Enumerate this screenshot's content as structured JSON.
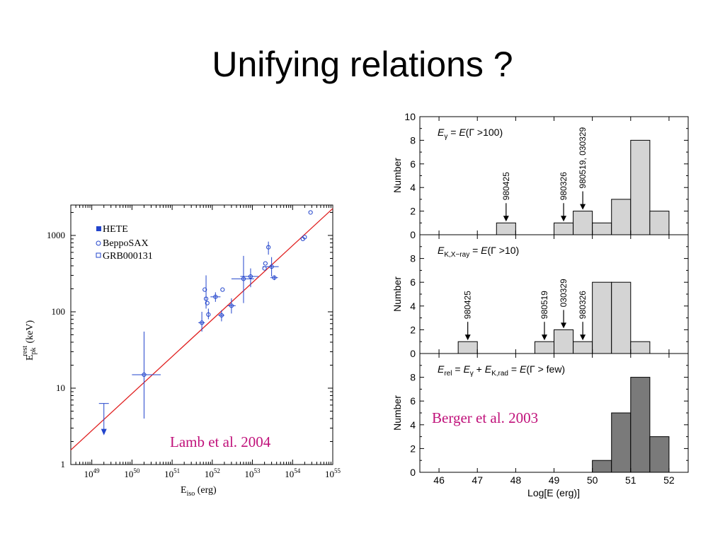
{
  "slide": {
    "title": "Unifying relations ?",
    "left_citation": "Lamb et al. 2004",
    "right_citation": "Berger et al. 2003",
    "citation_color": "#c0117a"
  },
  "chart_data": [
    {
      "type": "scatter",
      "panel": "left",
      "xlabel": "E_iso (erg)",
      "ylabel": "E_pk^rest (keV)",
      "xscale": "log",
      "yscale": "log",
      "xlim": [
        3e+48,
        1e+55
      ],
      "ylim": [
        1,
        2500
      ],
      "xtick_labels": [
        "10^49",
        "10^50",
        "10^51",
        "10^52",
        "10^53",
        "10^54",
        "10^55"
      ],
      "ytick_labels": [
        "1",
        "10",
        "100",
        "1000"
      ],
      "legend": [
        "HETE",
        "BeppoSAX",
        "GRB000131"
      ],
      "legend_position": "top-left",
      "fit_line": {
        "x": [
          3e+48,
          1e+55
        ],
        "y": [
          1.55,
          2250
        ],
        "color": "#e02020"
      },
      "series_color": "#2244cc",
      "points": [
        {
          "x": 2e+49,
          "y": 6.3,
          "upper_limit": true
        },
        {
          "x": 2e+50,
          "y": 15,
          "xerr": [
            1e+50,
            5.2e+50
          ],
          "yerr": [
            4,
            55
          ]
        },
        {
          "x": 5.5e+51,
          "y": 72,
          "xerr": [
            4.5e+51,
            6.5e+51
          ],
          "yerr": [
            55,
            100
          ]
        },
        {
          "x": 6.5e+51,
          "y": 195
        },
        {
          "x": 7e+51,
          "y": 148,
          "yerr": [
            110,
            300
          ]
        },
        {
          "x": 7.5e+51,
          "y": 130
        },
        {
          "x": 8e+51,
          "y": 92,
          "yerr": [
            80,
            110
          ]
        },
        {
          "x": 1.2e+52,
          "y": 157,
          "xerr": [
            9e+51,
            1.6e+52
          ],
          "yerr": [
            135,
            180
          ]
        },
        {
          "x": 1.7e+52,
          "y": 90,
          "xerr": [
            1.4e+52,
            2e+52
          ],
          "yerr": [
            75,
            105
          ]
        },
        {
          "x": 1.8e+52,
          "y": 195
        },
        {
          "x": 3e+52,
          "y": 120,
          "xerr": [
            2.4e+52,
            3.8e+52
          ],
          "yerr": [
            95,
            150
          ]
        },
        {
          "x": 6e+52,
          "y": 270,
          "xerr": [
            3e+52,
            1.1e+53
          ],
          "yerr": [
            130,
            540
          ]
        },
        {
          "x": 9e+52,
          "y": 290,
          "xerr": [
            5e+52,
            1.4e+53
          ],
          "yerr": [
            210,
            370
          ]
        },
        {
          "x": 2e+53,
          "y": 370
        },
        {
          "x": 2.1e+53,
          "y": 430
        },
        {
          "x": 2.5e+53,
          "y": 700,
          "yerr": [
            560,
            830
          ]
        },
        {
          "x": 3e+53,
          "y": 390,
          "xerr": [
            1.8e+53,
            4.5e+53
          ],
          "yerr": [
            290,
            520
          ]
        },
        {
          "x": 3.5e+53,
          "y": 280,
          "xerr": [
            2.8e+53,
            4.3e+53
          ],
          "yerr": [
            260,
            300
          ]
        },
        {
          "x": 1.8e+54,
          "y": 900
        },
        {
          "x": 2e+54,
          "y": 950
        },
        {
          "x": 2.8e+54,
          "y": 2000
        }
      ]
    },
    {
      "type": "bar",
      "panel": "right",
      "xlabel": "Log[E (erg)]",
      "ylabel": "Number",
      "xlim": [
        45.5,
        52.5
      ],
      "x_ticks": [
        "46",
        "47",
        "48",
        "49",
        "50",
        "51",
        "52"
      ],
      "bin_width": 0.5,
      "panels": [
        {
          "label": "E_γ = E(Γ >100)",
          "ylim": [
            0,
            10
          ],
          "y_ticks": [
            "0",
            "2",
            "4",
            "6",
            "8",
            "10"
          ],
          "fill": "#d4d4d4",
          "bins": [
            {
              "x0": 47.5,
              "value": 1
            },
            {
              "x0": 49.0,
              "value": 1
            },
            {
              "x0": 49.5,
              "value": 2
            },
            {
              "x0": 50.0,
              "value": 1
            },
            {
              "x0": 50.5,
              "value": 3
            },
            {
              "x0": 51.0,
              "value": 8
            },
            {
              "x0": 51.5,
              "value": 2
            }
          ],
          "annotations": [
            {
              "text": "980425",
              "x": 47.75,
              "y": 1
            },
            {
              "text": "980326",
              "x": 49.25,
              "y": 1
            },
            {
              "text": "980519, 030329",
              "x": 49.75,
              "y": 2
            }
          ]
        },
        {
          "label": "E_K,X-ray = E(Γ >10)",
          "ylim": [
            0,
            10
          ],
          "y_ticks": [
            "0",
            "2",
            "4",
            "6",
            "8"
          ],
          "fill": "#d4d4d4",
          "bins": [
            {
              "x0": 46.5,
              "value": 1
            },
            {
              "x0": 48.5,
              "value": 1
            },
            {
              "x0": 49.0,
              "value": 2
            },
            {
              "x0": 49.5,
              "value": 1
            },
            {
              "x0": 50.0,
              "value": 6
            },
            {
              "x0": 50.5,
              "value": 6
            },
            {
              "x0": 51.0,
              "value": 1
            }
          ],
          "annotations": [
            {
              "text": "980425",
              "x": 46.75,
              "y": 1
            },
            {
              "text": "980519",
              "x": 48.75,
              "y": 1
            },
            {
              "text": "030329",
              "x": 49.25,
              "y": 2
            },
            {
              "text": "980326",
              "x": 49.75,
              "y": 1
            }
          ]
        },
        {
          "label": "E_rel = E_γ + E_K,rad = E(Γ > few)",
          "ylim": [
            0,
            10
          ],
          "y_ticks": [
            "0",
            "2",
            "4",
            "6",
            "8"
          ],
          "fill": "#7a7a7a",
          "bins": [
            {
              "x0": 50.0,
              "value": 1
            },
            {
              "x0": 50.5,
              "value": 5
            },
            {
              "x0": 51.0,
              "value": 8
            },
            {
              "x0": 51.5,
              "value": 3
            }
          ],
          "annotations": []
        }
      ]
    }
  ]
}
